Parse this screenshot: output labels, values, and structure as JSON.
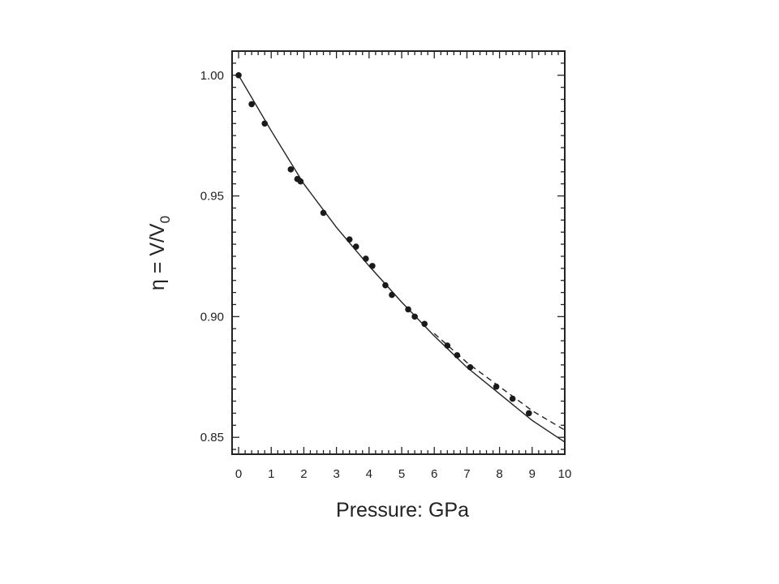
{
  "chart_data": {
    "type": "line",
    "title": "",
    "xlabel": "Pressure: GPa",
    "ylabel": {
      "main": "η = V/V",
      "subscript": "0"
    },
    "xlim": [
      -0.2,
      10
    ],
    "ylim": [
      0.843,
      1.01
    ],
    "xticks": [
      0,
      1,
      2,
      3,
      4,
      5,
      6,
      7,
      8,
      9,
      10
    ],
    "xtick_labels": [
      "0",
      "1",
      "2",
      "3",
      "4",
      "5",
      "6",
      "7",
      "8",
      "9",
      "10"
    ],
    "yticks": [
      0.85,
      0.9,
      0.95,
      1.0
    ],
    "ytick_labels": [
      "0.85",
      "0.90",
      "0.95",
      "1.00"
    ],
    "grid": false,
    "series": [
      {
        "style": "markers",
        "x": [
          0.0,
          0.4,
          0.8,
          1.6,
          1.8,
          1.9,
          2.6,
          3.4,
          3.6,
          3.9,
          4.1,
          4.5,
          4.7,
          5.2,
          5.4,
          5.7,
          6.4,
          6.7,
          7.1,
          7.9,
          8.4,
          8.9
        ],
        "y": [
          1.0,
          0.988,
          0.98,
          0.961,
          0.957,
          0.956,
          0.943,
          0.932,
          0.929,
          0.924,
          0.921,
          0.913,
          0.909,
          0.903,
          0.9,
          0.897,
          0.888,
          0.884,
          0.879,
          0.871,
          0.866,
          0.86
        ]
      },
      {
        "style": "solid",
        "x": [
          0,
          1,
          2,
          3,
          4,
          5,
          6,
          7,
          8,
          9,
          10
        ],
        "y": [
          1.0,
          0.977,
          0.955,
          0.937,
          0.921,
          0.906,
          0.892,
          0.879,
          0.868,
          0.857,
          0.848
        ]
      },
      {
        "style": "dashed",
        "x": [
          6,
          7,
          8,
          9,
          10
        ],
        "y": [
          0.893,
          0.881,
          0.871,
          0.861,
          0.853
        ]
      }
    ]
  }
}
